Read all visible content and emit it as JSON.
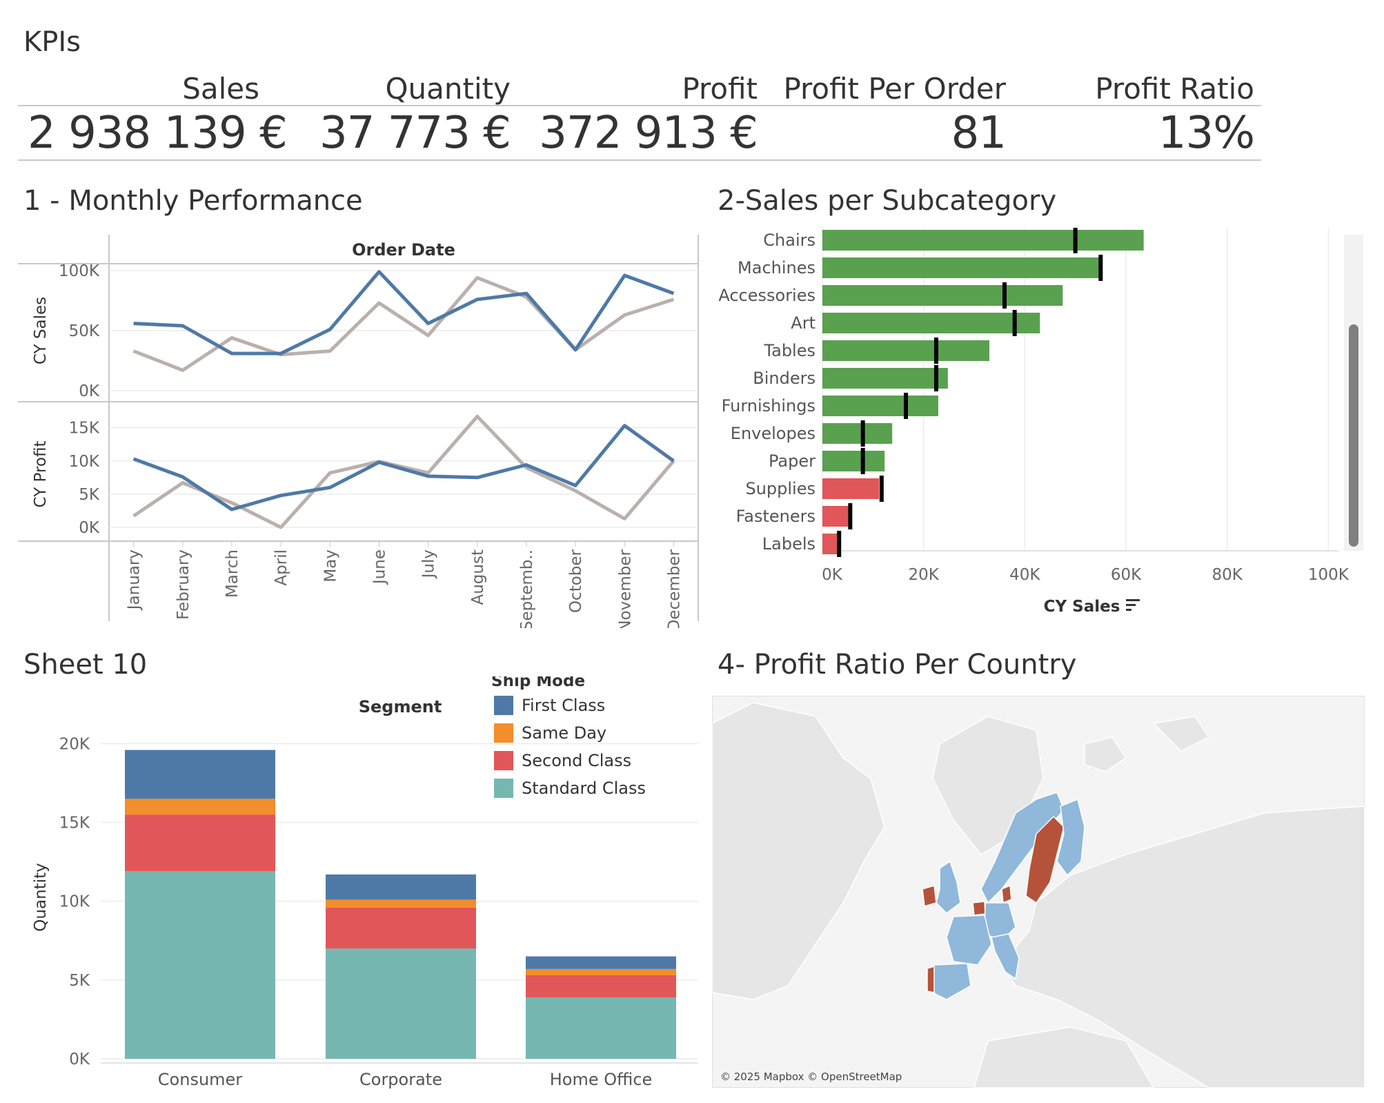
{
  "kpis": {
    "title": "KPIs",
    "items": [
      {
        "label": "Sales",
        "value": "2 938 139 €"
      },
      {
        "label": "Quantity",
        "value": "37 773 €"
      },
      {
        "label": "Profit",
        "value": "372 913 €"
      },
      {
        "label": "Profit Per Order",
        "value": "81"
      },
      {
        "label": "Profit Ratio",
        "value": "13%"
      }
    ]
  },
  "panels": {
    "monthly_title": "1 - Monthly Performance",
    "subcat_title": "2-Sales per Subcategory",
    "segment_title": "Sheet 10",
    "map_title": "4- Profit Ratio Per Country",
    "map_credit": "© 2025 Mapbox © OpenStreetMap"
  },
  "colors": {
    "cy_line": "#4e79a7",
    "py_line": "#bab0ac",
    "bar_positive": "#59a14f",
    "bar_negative": "#e15759",
    "first_class": "#4e79a7",
    "same_day": "#f28e2b",
    "second_class": "#e15759",
    "standard_class": "#76b7b2",
    "map_positive": "#8fb8db",
    "map_negative": "#b5533a",
    "map_land": "#e6e6e6",
    "map_water": "#f4f4f4"
  },
  "chart_data": [
    {
      "type": "line",
      "column_header": "Order Date",
      "categories": [
        "January",
        "February",
        "March",
        "April",
        "May",
        "June",
        "July",
        "August",
        "Septemb..",
        "October",
        "November",
        "December"
      ],
      "panes": [
        {
          "ylabel": "CY Sales",
          "ylim": [
            0,
            100000
          ],
          "ticks": [
            {
              "v": 0,
              "label": "0K"
            },
            {
              "v": 50000,
              "label": "50K"
            },
            {
              "v": 100000,
              "label": "100K"
            }
          ],
          "series": [
            {
              "values": [
                56000,
                54000,
                31000,
                31000,
                51000,
                99000,
                56000,
                76000,
                81000,
                34000,
                96000,
                81000
              ]
            },
            {
              "values": [
                33000,
                17000,
                44000,
                30000,
                33000,
                73000,
                46000,
                94000,
                78000,
                34000,
                63000,
                76000
              ]
            }
          ]
        },
        {
          "ylabel": "CY Profit",
          "ylim": [
            0,
            16000
          ],
          "ticks": [
            {
              "v": 0,
              "label": "0K"
            },
            {
              "v": 5000,
              "label": "5K"
            },
            {
              "v": 10000,
              "label": "10K"
            },
            {
              "v": 15000,
              "label": "15K"
            }
          ],
          "series": [
            {
              "values": [
                10300,
                7600,
                2700,
                4800,
                6000,
                9800,
                7700,
                7500,
                9400,
                6300,
                15300,
                10000
              ]
            },
            {
              "values": [
                1700,
                6700,
                3700,
                0,
                8200,
                9900,
                8200,
                16700,
                9000,
                5500,
                1300,
                10000
              ]
            }
          ]
        }
      ]
    },
    {
      "type": "bar",
      "orientation": "horizontal",
      "categories": [
        "Chairs",
        "Machines",
        "Accessories",
        "Art",
        "Tables",
        "Binders",
        "Furnishings",
        "Envelopes",
        "Paper",
        "Supplies",
        "Fasteners",
        "Labels"
      ],
      "values": [
        63500,
        55000,
        47500,
        43000,
        33000,
        24800,
        22900,
        13800,
        12300,
        11200,
        5100,
        3400
      ],
      "reference": [
        50000,
        55000,
        36000,
        38000,
        22500,
        22500,
        16500,
        8000,
        8000,
        11700,
        5500,
        3300
      ],
      "profitable": [
        true,
        true,
        true,
        true,
        true,
        true,
        true,
        true,
        true,
        false,
        false,
        false
      ],
      "xlabel": "CY Sales",
      "xlim": [
        0,
        102000
      ],
      "ticks": [
        {
          "v": 0,
          "label": "0K"
        },
        {
          "v": 20000,
          "label": "20K"
        },
        {
          "v": 40000,
          "label": "40K"
        },
        {
          "v": 60000,
          "label": "60K"
        },
        {
          "v": 80000,
          "label": "80K"
        },
        {
          "v": 100000,
          "label": "100K"
        }
      ]
    },
    {
      "type": "bar",
      "stacked": true,
      "column_header": "Segment",
      "categories": [
        "Consumer",
        "Corporate",
        "Home Office"
      ],
      "ylabel": "Quantity",
      "ylim": [
        0,
        20500
      ],
      "ticks": [
        {
          "v": 0,
          "label": "0K"
        },
        {
          "v": 5000,
          "label": "5K"
        },
        {
          "v": 10000,
          "label": "10K"
        },
        {
          "v": 15000,
          "label": "15K"
        },
        {
          "v": 20000,
          "label": "20K"
        }
      ],
      "legend_title": "Ship Mode",
      "legend_position": "top-right",
      "series": [
        {
          "name": "Standard Class",
          "key": "standard_class",
          "values": [
            11900,
            7000,
            3900
          ]
        },
        {
          "name": "Second Class",
          "key": "second_class",
          "values": [
            3600,
            2600,
            1400
          ]
        },
        {
          "name": "Same Day",
          "key": "same_day",
          "values": [
            1000,
            500,
            400
          ]
        },
        {
          "name": "First Class",
          "key": "first_class",
          "values": [
            3100,
            1600,
            800
          ]
        }
      ],
      "legend_order": [
        "First Class",
        "Same Day",
        "Second Class",
        "Standard Class"
      ]
    }
  ]
}
